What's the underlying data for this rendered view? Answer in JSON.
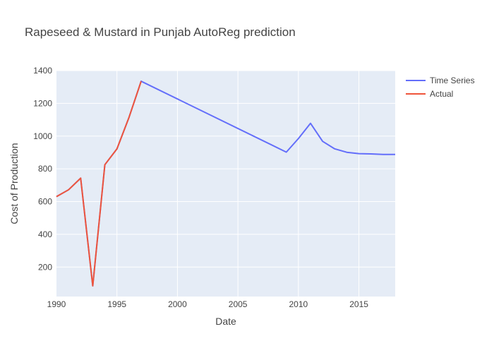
{
  "chart_data": {
    "type": "line",
    "title": "Rapeseed & Mustard in Punjab AutoReg prediction",
    "xlabel": "Date",
    "ylabel": "Cost of Production",
    "xlim": [
      1990,
      2018
    ],
    "ylim": [
      20,
      1400
    ],
    "x_ticks": [
      1990,
      1995,
      2000,
      2005,
      2010,
      2015
    ],
    "y_ticks": [
      200,
      400,
      600,
      800,
      1000,
      1200,
      1400
    ],
    "grid": true,
    "legend_position": "top-right",
    "colors": {
      "plot_bg": "#e5ecf6",
      "grid": "#ffffff"
    },
    "series": [
      {
        "name": "Time Series",
        "color": "#636efa",
        "x": [
          1990,
          1991,
          1992,
          1993,
          1994,
          1995,
          1996,
          1997,
          2009,
          2010,
          2011,
          2012,
          2013,
          2014,
          2015,
          2016,
          2017,
          2018
        ],
        "y": [
          630,
          672,
          743,
          85,
          825,
          922,
          1115,
          1335,
          902,
          985,
          1078,
          968,
          922,
          901,
          893,
          891,
          888,
          888
        ]
      },
      {
        "name": "Actual",
        "color": "#ef553b",
        "x": [
          1990,
          1991,
          1992,
          1993,
          1994,
          1995,
          1996,
          1997
        ],
        "y": [
          630,
          672,
          743,
          85,
          825,
          922,
          1115,
          1335
        ]
      }
    ]
  }
}
